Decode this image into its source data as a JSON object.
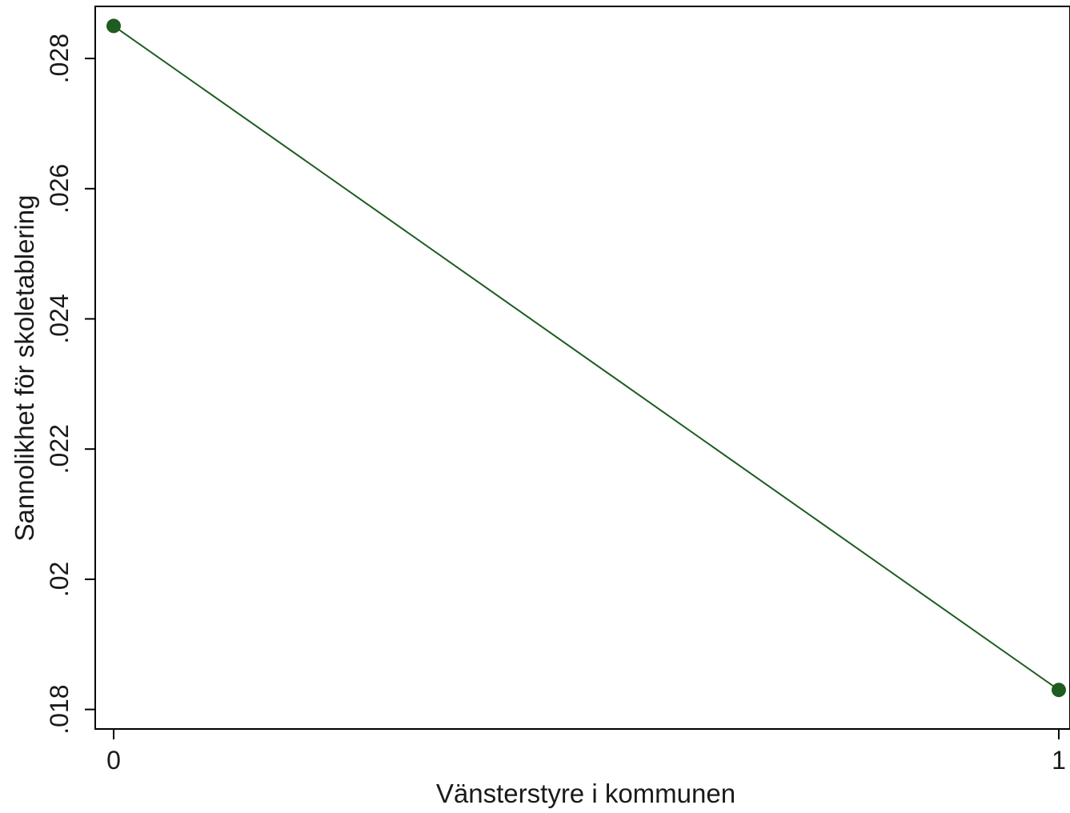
{
  "chart_data": {
    "type": "line",
    "title": "",
    "xlabel": "Vänsterstyre i kommunen",
    "ylabel": "Sannolikhet för skoletablering",
    "x": [
      0,
      1
    ],
    "x_tick_labels": [
      "0",
      "1"
    ],
    "y_ticks": [
      0.018,
      0.02,
      0.022,
      0.024,
      0.026,
      0.028
    ],
    "y_tick_labels": [
      ".018",
      ".02",
      ".022",
      ".024",
      ".026",
      ".028"
    ],
    "xlim": [
      -0.019,
      1.0
    ],
    "ylim": [
      0.0177,
      0.0288
    ],
    "series": [
      {
        "values": [
          0.0285,
          0.0183
        ],
        "color": "#1f5c1f",
        "marker": "circle"
      }
    ],
    "grid": false,
    "legend": "none"
  }
}
